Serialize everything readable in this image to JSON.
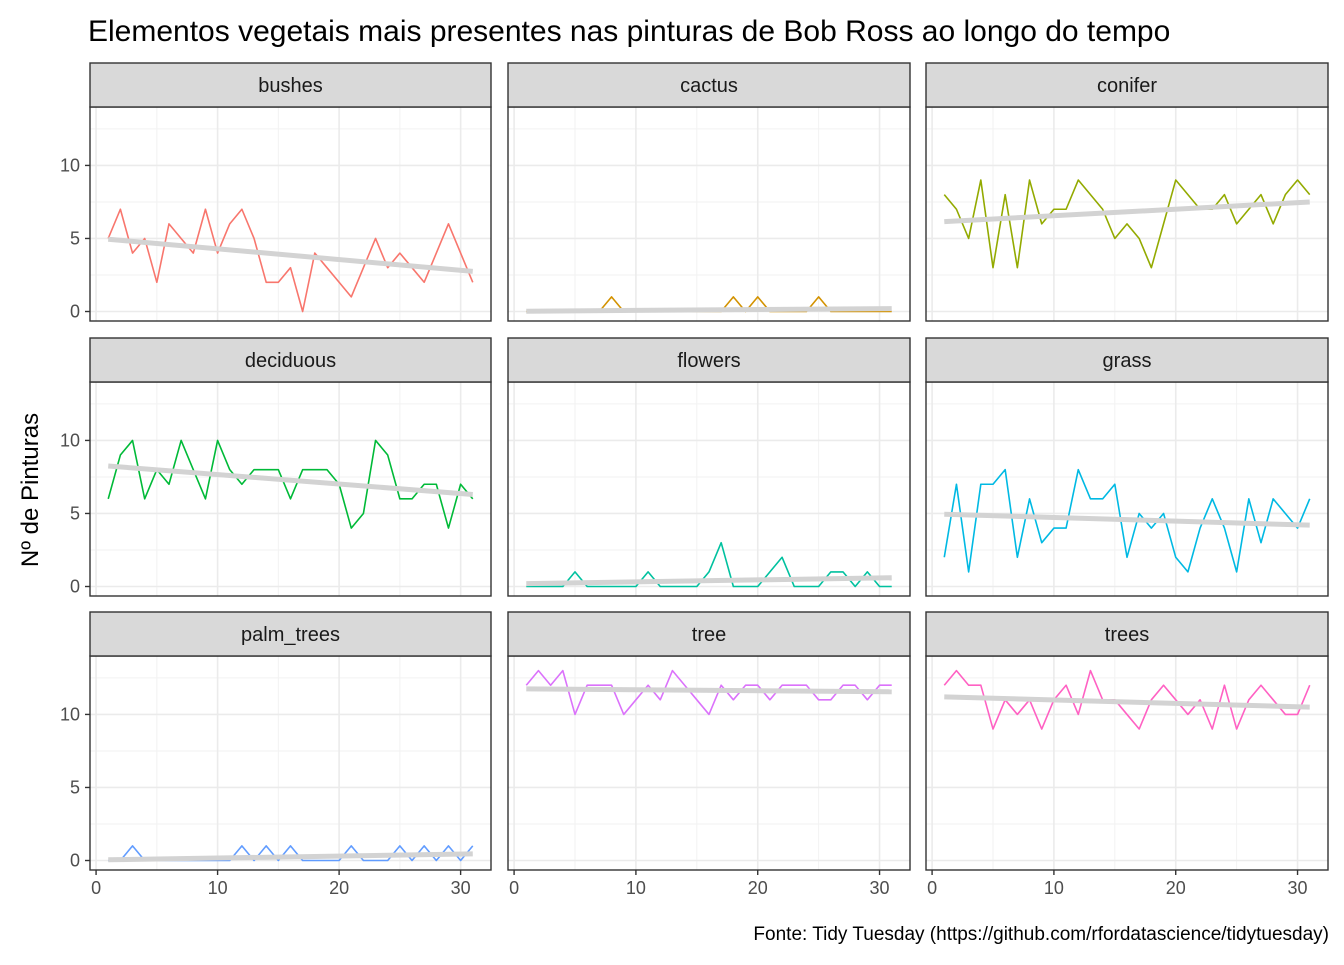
{
  "chart_data": {
    "type": "line",
    "title": "Elementos vegetais mais presentes nas pinturas de Bob Ross ao longo do tempo",
    "caption": "Fonte: Tidy Tuesday (https://github.com/rfordatascience/tidytuesday)",
    "xlabel": "",
    "ylabel": "Nº de Pinturas",
    "xlim": [
      1,
      31
    ],
    "ylim": [
      0,
      13
    ],
    "x_ticks": [
      0,
      10,
      20,
      30
    ],
    "y_ticks": [
      0,
      5,
      10
    ],
    "x": [
      1,
      2,
      3,
      4,
      5,
      6,
      7,
      8,
      9,
      10,
      11,
      12,
      13,
      14,
      15,
      16,
      17,
      18,
      19,
      20,
      21,
      22,
      23,
      24,
      25,
      26,
      27,
      28,
      29,
      30,
      31
    ],
    "trend_color": "#d3d3d3",
    "grid": true,
    "facets": [
      {
        "name": "bushes",
        "color": "#F8766D",
        "values": [
          5,
          7,
          4,
          5,
          2,
          6,
          5,
          4,
          7,
          4,
          6,
          7,
          5,
          2,
          2,
          3,
          0,
          4,
          3,
          2,
          1,
          3,
          5,
          3,
          4,
          3,
          2,
          4,
          6,
          4,
          2
        ],
        "trend": [
          4.95,
          2.75
        ]
      },
      {
        "name": "cactus",
        "color": "#D39200",
        "values": [
          0,
          0,
          0,
          0,
          0,
          0,
          0,
          1,
          0,
          0,
          0,
          0,
          0,
          0,
          0,
          0,
          0,
          1,
          0,
          1,
          0,
          0,
          0,
          0,
          1,
          0,
          0,
          0,
          0,
          0,
          0
        ],
        "trend": [
          0.02,
          0.2
        ]
      },
      {
        "name": "conifer",
        "color": "#93AA00",
        "values": [
          8,
          7,
          5,
          9,
          3,
          8,
          3,
          9,
          6,
          7,
          7,
          9,
          8,
          7,
          5,
          6,
          5,
          3,
          6,
          9,
          8,
          7,
          7,
          8,
          6,
          7,
          8,
          6,
          8,
          9,
          8
        ],
        "trend": [
          6.15,
          7.5
        ]
      },
      {
        "name": "deciduous",
        "color": "#00BA38",
        "values": [
          6,
          9,
          10,
          6,
          8,
          7,
          10,
          8,
          6,
          10,
          8,
          7,
          8,
          8,
          8,
          6,
          8,
          8,
          8,
          7,
          4,
          5,
          10,
          9,
          6,
          6,
          7,
          7,
          4,
          7,
          6
        ],
        "trend": [
          8.25,
          6.3
        ]
      },
      {
        "name": "flowers",
        "color": "#00C19F",
        "values": [
          0,
          0,
          0,
          0,
          1,
          0,
          0,
          0,
          0,
          0,
          1,
          0,
          0,
          0,
          0,
          1,
          3,
          0,
          0,
          0,
          1,
          2,
          0,
          0,
          0,
          1,
          1,
          0,
          1,
          0,
          0
        ],
        "trend": [
          0.2,
          0.6
        ]
      },
      {
        "name": "grass",
        "color": "#00B9E3",
        "values": [
          2,
          7,
          1,
          7,
          7,
          8,
          2,
          6,
          3,
          4,
          4,
          8,
          6,
          6,
          7,
          2,
          5,
          4,
          5,
          2,
          1,
          4,
          6,
          4,
          1,
          6,
          3,
          6,
          5,
          4,
          6
        ],
        "trend": [
          4.95,
          4.2
        ]
      },
      {
        "name": "palm_trees",
        "color": "#619CFF",
        "values": [
          0,
          0,
          1,
          0,
          0,
          0,
          0,
          0,
          0,
          0,
          0,
          1,
          0,
          1,
          0,
          1,
          0,
          0,
          0,
          0,
          1,
          0,
          0,
          0,
          1,
          0,
          1,
          0,
          1,
          0,
          1
        ],
        "trend": [
          0.05,
          0.45
        ]
      },
      {
        "name": "tree",
        "color": "#DB72FB",
        "values": [
          12,
          13,
          12,
          13,
          10,
          12,
          12,
          12,
          10,
          11,
          12,
          11,
          13,
          12,
          11,
          10,
          12,
          11,
          12,
          12,
          11,
          12,
          12,
          12,
          11,
          11,
          12,
          12,
          11,
          12,
          12
        ],
        "trend": [
          11.75,
          11.55
        ]
      },
      {
        "name": "trees",
        "color": "#FF61C3",
        "values": [
          12,
          13,
          12,
          12,
          9,
          11,
          10,
          11,
          9,
          11,
          12,
          10,
          13,
          11,
          11,
          10,
          9,
          11,
          12,
          11,
          10,
          11,
          9,
          12,
          9,
          11,
          12,
          11,
          10,
          10,
          12
        ],
        "trend": [
          11.2,
          10.5
        ]
      }
    ]
  }
}
